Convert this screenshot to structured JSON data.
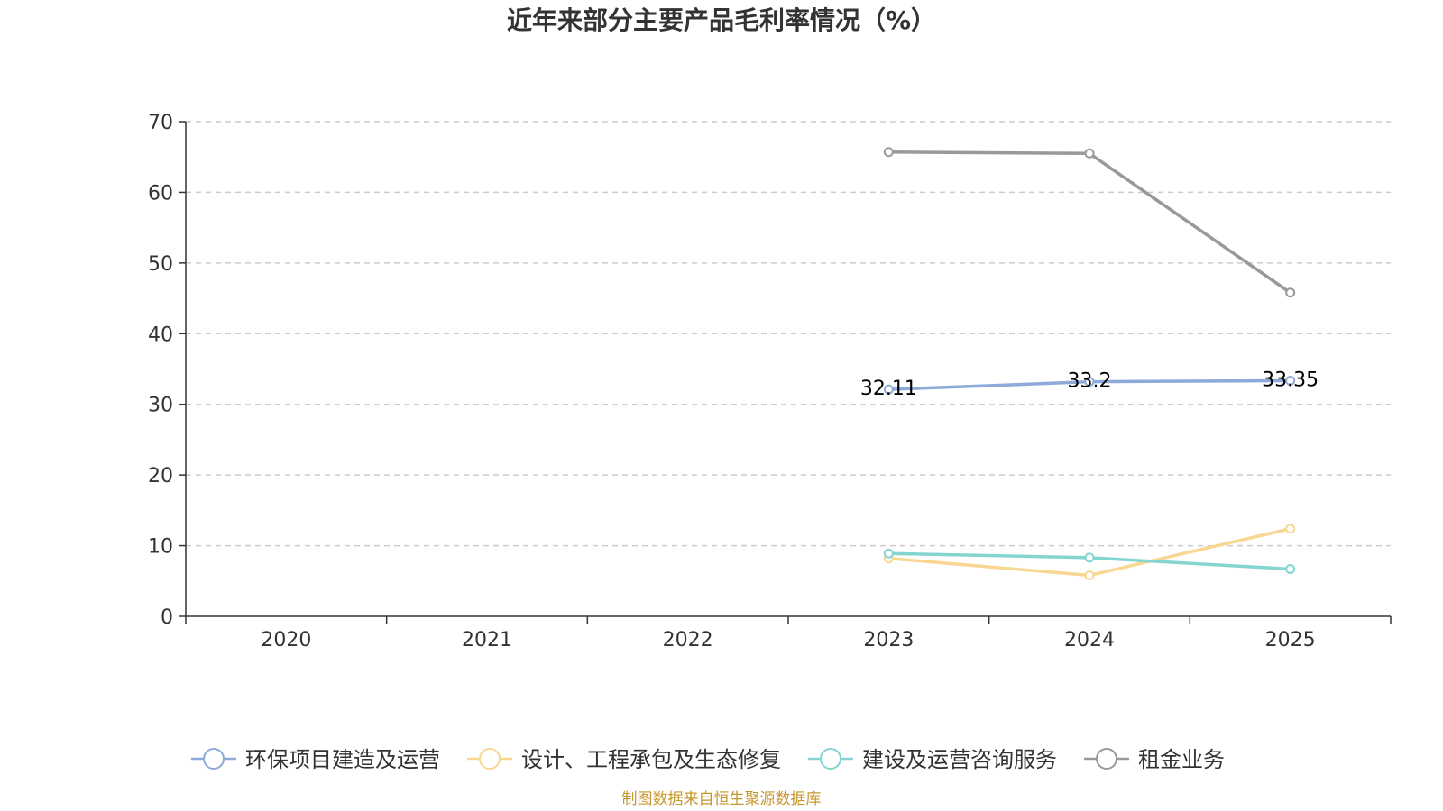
{
  "chart_data": {
    "type": "line",
    "title": "近年来部分主要产品毛利率情况（%）",
    "categories": [
      "2020",
      "2021",
      "2022",
      "2023",
      "2024",
      "2025"
    ],
    "ylim": [
      0,
      70
    ],
    "yticks": [
      0,
      10,
      20,
      30,
      40,
      50,
      60,
      70
    ],
    "grid": true,
    "legend_position": "bottom",
    "series": [
      {
        "name": "环保项目建造及运营",
        "color": "#8eaadb",
        "values": [
          null,
          null,
          null,
          32.11,
          33.2,
          33.35
        ],
        "labels": [
          null,
          null,
          null,
          "32.11",
          "33.2",
          "33.35"
        ]
      },
      {
        "name": "设计、工程承包及生态修复",
        "color": "#f9d792",
        "values": [
          null,
          null,
          null,
          8.2,
          5.8,
          12.4
        ],
        "labels": [
          null,
          null,
          null,
          null,
          null,
          null
        ]
      },
      {
        "name": "建设及运营咨询服务",
        "color": "#84d4d0",
        "values": [
          null,
          null,
          null,
          8.9,
          8.3,
          6.7
        ],
        "labels": [
          null,
          null,
          null,
          null,
          null,
          null
        ]
      },
      {
        "name": "租金业务",
        "color": "#999999",
        "values": [
          null,
          null,
          null,
          65.7,
          65.5,
          45.8
        ],
        "labels": [
          null,
          null,
          null,
          null,
          null,
          null
        ]
      }
    ]
  },
  "source_text": "制图数据来自恒生聚源数据库"
}
